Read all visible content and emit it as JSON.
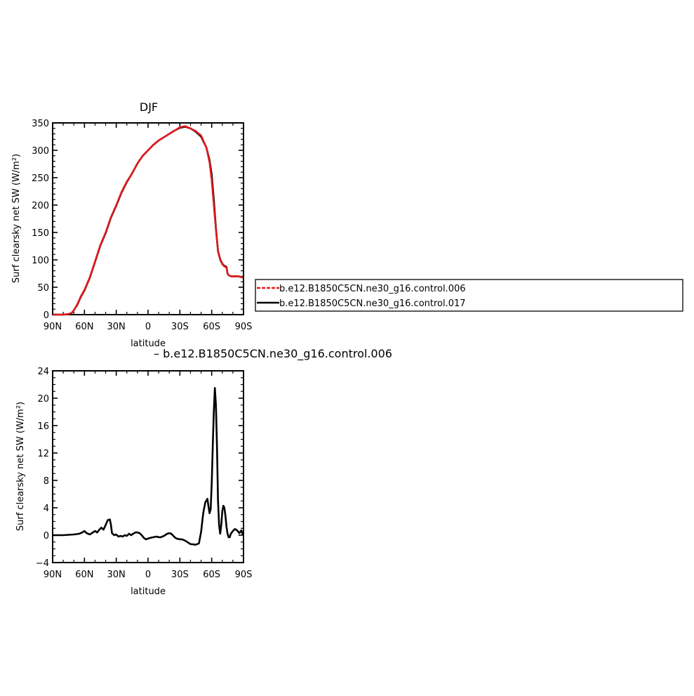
{
  "chart_data": [
    {
      "type": "line",
      "title": "DJF",
      "xlabel": "latitude",
      "ylabel": "Surf clearsky net SW (W/m²)",
      "xlim": [
        90,
        -90
      ],
      "ylim": [
        0,
        350
      ],
      "x_ticks": [
        90,
        60,
        30,
        0,
        -30,
        -60,
        -90
      ],
      "x_tick_labels": [
        "90N",
        "60N",
        "30N",
        "0",
        "30S",
        "60S",
        "90S"
      ],
      "y_ticks": [
        0,
        50,
        100,
        150,
        200,
        250,
        300,
        350
      ],
      "y_tick_labels": [
        "0",
        "50",
        "100",
        "150",
        "200",
        "250",
        "300",
        "350"
      ],
      "legend_position": "right of plot",
      "series": [
        {
          "name": "b.e12.B1850C5CN.ne30_g16.control.006",
          "color": "#e41a1c",
          "dash": "dashed",
          "x": [
            89,
            85,
            80,
            75,
            72,
            70,
            67,
            63,
            60,
            55,
            50,
            45,
            40,
            35,
            30,
            25,
            20,
            15,
            10,
            5,
            0,
            -5,
            -10,
            -15,
            -20,
            -25,
            -30,
            -35,
            -40,
            -45,
            -50,
            -55,
            -58,
            -60,
            -62,
            -64,
            -66,
            -68,
            -70,
            -72,
            -74,
            -75,
            -76,
            -77,
            -78,
            -80,
            -85,
            -89
          ],
          "values": [
            0,
            0,
            0,
            1,
            3,
            8,
            18,
            35,
            45,
            68,
            97,
            127,
            150,
            178,
            200,
            224,
            243,
            258,
            276,
            290,
            300,
            310,
            318,
            324,
            330,
            336,
            342,
            344,
            340,
            335,
            327,
            305,
            278,
            245,
            200,
            155,
            115,
            100,
            92,
            88,
            86,
            75,
            72,
            71,
            70,
            70,
            70,
            68
          ]
        },
        {
          "name": "b.e12.B1850C5CN.ne30_g16.control.017",
          "color": "#000000",
          "dash": "solid",
          "x": [
            89,
            85,
            80,
            75,
            72,
            70,
            67,
            63,
            60,
            55,
            50,
            45,
            40,
            35,
            30,
            25,
            20,
            15,
            10,
            5,
            0,
            -5,
            -10,
            -15,
            -20,
            -25,
            -30,
            -35,
            -40,
            -45,
            -50,
            -55,
            -58,
            -60,
            -62,
            -64,
            -66,
            -68,
            -70,
            -72,
            -74,
            -75,
            -76,
            -77,
            -78,
            -80,
            -85,
            -89
          ],
          "values": [
            0,
            0,
            0,
            1,
            3,
            8,
            17,
            34,
            44,
            67,
            96,
            126,
            149,
            177,
            199,
            223,
            242,
            258,
            276,
            290,
            300,
            310,
            318,
            324,
            330,
            336,
            341,
            343,
            340,
            334,
            325,
            305,
            282,
            255,
            210,
            158,
            116,
            101,
            93,
            89,
            87,
            75,
            72,
            71,
            70,
            70,
            70,
            68
          ]
        }
      ]
    },
    {
      "type": "line",
      "title": "– b.e12.B1850C5CN.ne30_g16.control.006",
      "xlabel": "latitude",
      "ylabel": "Surf clearsky net SW (W/m²)",
      "xlim": [
        90,
        -90
      ],
      "ylim": [
        -4,
        24
      ],
      "x_ticks": [
        90,
        60,
        30,
        0,
        -30,
        -60,
        -90
      ],
      "x_tick_labels": [
        "90N",
        "60N",
        "30N",
        "0",
        "30S",
        "60S",
        "90S"
      ],
      "y_ticks": [
        -4,
        0,
        4,
        8,
        12,
        16,
        20,
        24
      ],
      "y_tick_labels": [
        "−4",
        "0",
        "4",
        "8",
        "12",
        "16",
        "20",
        "24"
      ],
      "series": [
        {
          "color": "#000000",
          "dash": "solid",
          "x": [
            89,
            80,
            70,
            65,
            62,
            60,
            58,
            55,
            52,
            50,
            48,
            46,
            44,
            42,
            40,
            38,
            36,
            35,
            34,
            32,
            30,
            28,
            26,
            24,
            22,
            20,
            18,
            16,
            14,
            12,
            10,
            8,
            6,
            4,
            2,
            0,
            -2,
            -5,
            -8,
            -10,
            -12,
            -15,
            -18,
            -20,
            -22,
            -25,
            -27,
            -30,
            -32,
            -35,
            -40,
            -45,
            -48,
            -50,
            -52,
            -54,
            -56,
            -57,
            -58,
            -59,
            -60,
            -61,
            -62,
            -63,
            -64,
            -65,
            -66,
            -67,
            -68,
            -69,
            -70,
            -71,
            -72,
            -73,
            -74,
            -75,
            -76,
            -77,
            -78,
            -80,
            -82,
            -84,
            -86,
            -88,
            -89
          ],
          "values": [
            0,
            0,
            0.1,
            0.2,
            0.4,
            0.6,
            0.3,
            0.1,
            0.4,
            0.6,
            0.4,
            0.8,
            1.1,
            0.8,
            1.5,
            2.2,
            2.3,
            1.5,
            0.3,
            0,
            0.1,
            -0.2,
            -0.1,
            -0.2,
            0,
            -0.1,
            0.2,
            0,
            0.2,
            0.4,
            0.4,
            0.3,
            0,
            -0.4,
            -0.6,
            -0.5,
            -0.4,
            -0.3,
            -0.2,
            -0.3,
            -0.3,
            -0.1,
            0.2,
            0.3,
            0.2,
            -0.3,
            -0.5,
            -0.6,
            -0.6,
            -0.8,
            -1.3,
            -1.4,
            -1.2,
            0.5,
            3.2,
            4.8,
            5.3,
            4.2,
            3.2,
            3.8,
            7.5,
            13,
            18,
            21.5,
            19,
            13,
            5,
            1.5,
            0.2,
            1.5,
            3.5,
            4.3,
            4,
            2.8,
            1.2,
            0.2,
            -0.3,
            -0.3,
            0.2,
            0.6,
            0.9,
            0.7,
            0.3,
            0.7,
            0.2
          ]
        }
      ]
    }
  ]
}
